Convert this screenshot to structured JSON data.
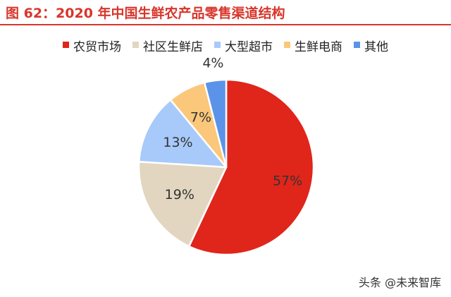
{
  "figure": {
    "title": "图 62：2020 年中国生鲜农产品零售渠道结构"
  },
  "chart_data": {
    "type": "pie",
    "categories": [
      "农贸市场",
      "社区生鲜店",
      "大型超市",
      "生鲜电商",
      "其他"
    ],
    "values": [
      57,
      19,
      13,
      7,
      4
    ],
    "value_labels": [
      "57%",
      "19%",
      "13%",
      "7%",
      "4%"
    ],
    "colors": [
      "#e0251b",
      "#e2d6c0",
      "#a8cafa",
      "#fbc77a",
      "#5b93e8"
    ],
    "legend_position": "top",
    "title_color": "#d8362b"
  },
  "watermark": {
    "text": "头条 @未来智库"
  }
}
